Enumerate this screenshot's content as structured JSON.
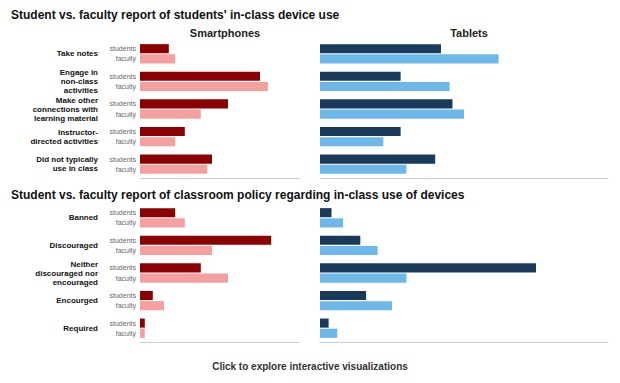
{
  "chart_data": [
    {
      "type": "bar",
      "orientation": "horizontal",
      "title": "Student vs. faculty report of students' in-class device use",
      "subtitle": "Smartphones",
      "categories": [
        "Take notes",
        "Engage in\nnon-class\nactivities",
        "Make other\nconnections with\nlearning material",
        "Instructor-\ndirected activities",
        "Did not typically\nuse in class"
      ],
      "series": [
        {
          "name": "students",
          "color": "#8B0000",
          "values": [
            18,
            75,
            55,
            28,
            45
          ]
        },
        {
          "name": "faculty",
          "color": "#F4A0A0",
          "values": [
            22,
            80,
            38,
            22,
            42
          ]
        }
      ],
      "xlim": [
        0,
        100
      ],
      "tick_labels": false
    },
    {
      "type": "bar",
      "orientation": "horizontal",
      "subtitle": "Tablets",
      "categories": [
        null,
        null,
        null,
        null,
        null
      ],
      "series": [
        {
          "color": "#1a3a5c",
          "values": [
            42,
            28,
            46,
            28,
            40
          ]
        },
        {
          "color": "#6db8e8",
          "values": [
            62,
            45,
            50,
            22,
            30
          ]
        }
      ],
      "xlim": [
        0,
        100
      ],
      "tick_labels": false
    },
    {
      "type": "bar",
      "orientation": "horizontal",
      "title": "Student vs. faculty report of classroom policy regarding in-class use of devices",
      "categories": [
        "Banned",
        "Discouraged",
        "Neither\ndiscouraged nor\nencouraged",
        "Encourged",
        "Required"
      ],
      "series": [
        {
          "name": "students",
          "color": "#8B0000",
          "values": [
            22,
            82,
            38,
            8,
            3
          ]
        },
        {
          "name": "faculty",
          "color": "#F4A0A0",
          "values": [
            28,
            45,
            55,
            15,
            3
          ]
        }
      ],
      "xlim": [
        0,
        100
      ],
      "tick_labels": false
    },
    {
      "type": "bar",
      "orientation": "horizontal",
      "categories": [
        null,
        null,
        null,
        null,
        null
      ],
      "series": [
        {
          "color": "#1a3a5c",
          "values": [
            4,
            14,
            75,
            16,
            3
          ]
        },
        {
          "color": "#6db8e8",
          "values": [
            8,
            20,
            30,
            25,
            6
          ]
        }
      ],
      "xlim": [
        0,
        100
      ],
      "tick_labels": false,
      "annotations": [
        "Click to explore interactive visualizations"
      ]
    }
  ]
}
